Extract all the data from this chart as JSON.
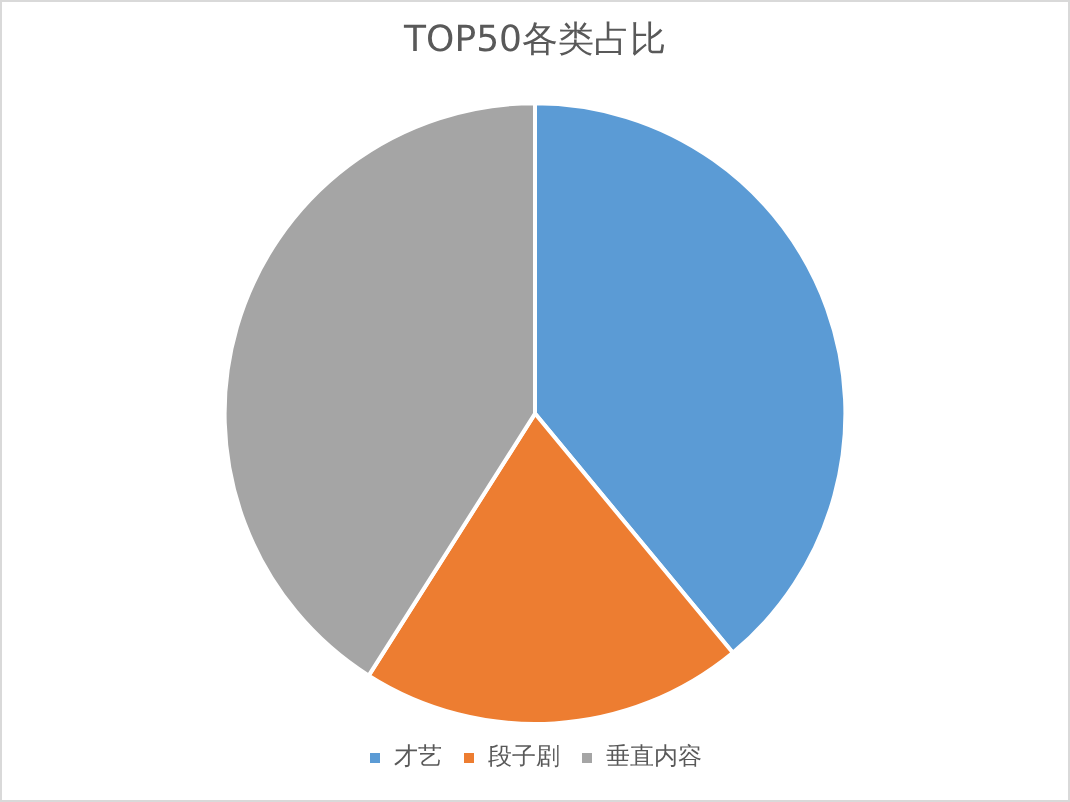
{
  "chart_data": {
    "type": "pie",
    "title": "TOP50各类占比",
    "categories": [
      "才艺",
      "段子剧",
      "垂直内容"
    ],
    "values": [
      39,
      20,
      41
    ],
    "colors": [
      "#5b9bd5",
      "#ed7d31",
      "#a5a5a5"
    ],
    "legend": "bottom"
  }
}
